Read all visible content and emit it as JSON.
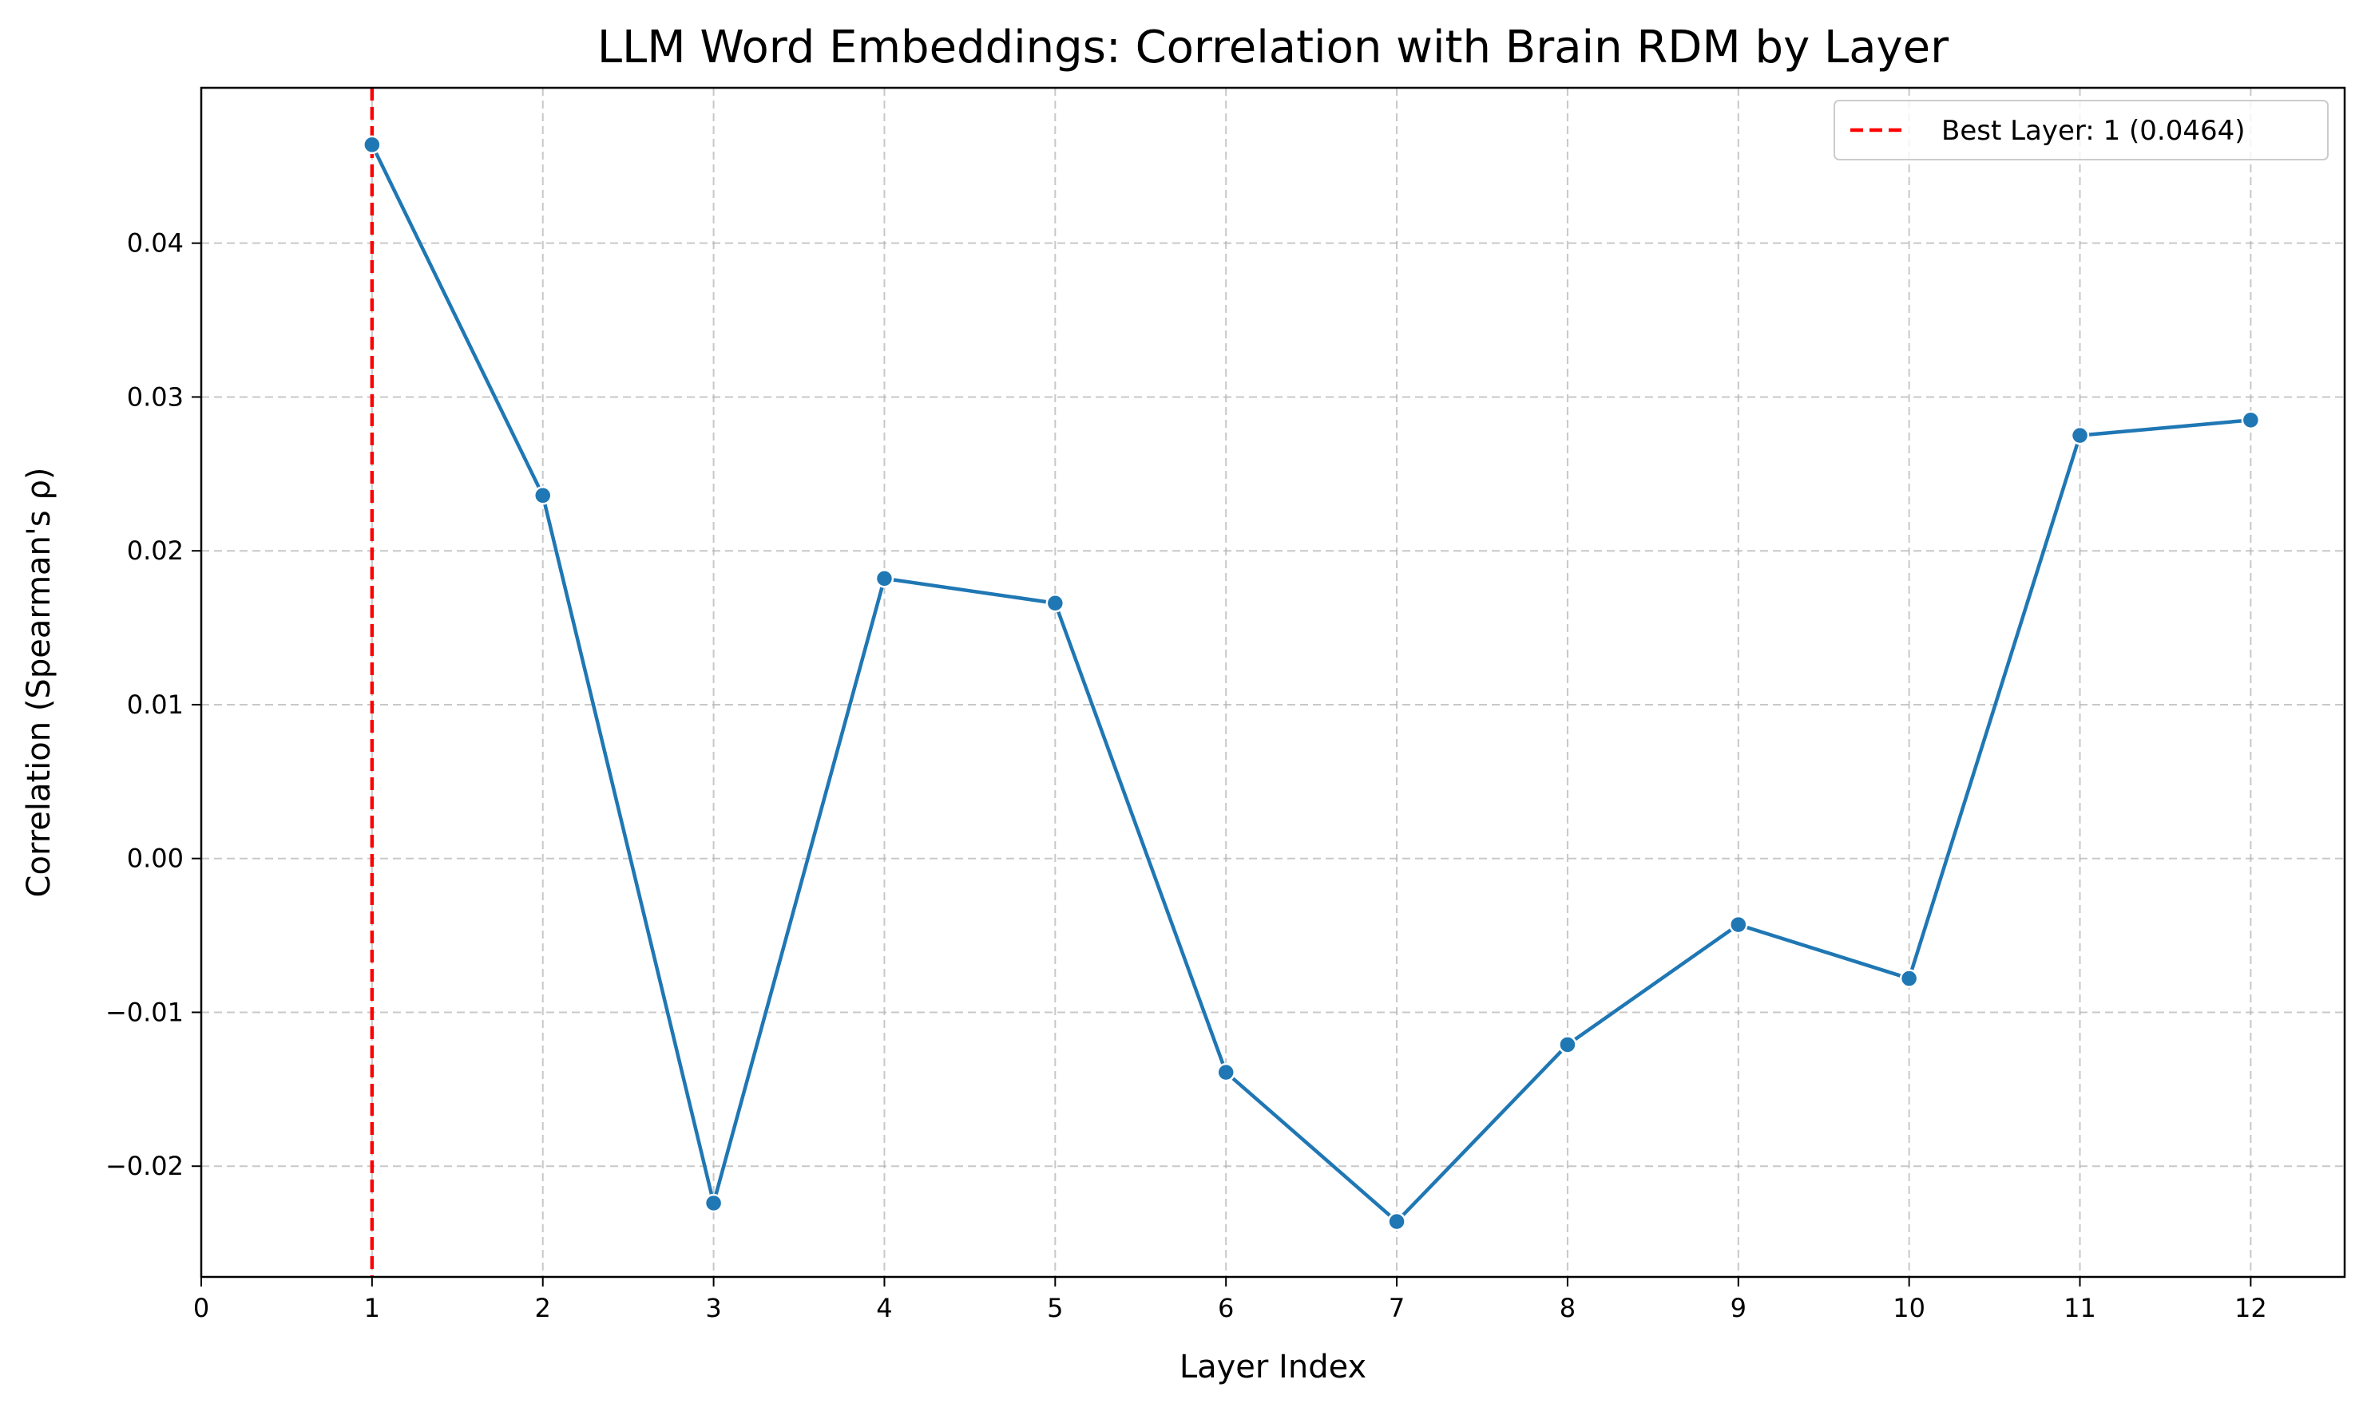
{
  "chart_data": {
    "type": "line",
    "title": "LLM Word Embeddings: Correlation with Brain RDM by Layer",
    "xlabel": "Layer Index",
    "ylabel": "Correlation (Spearman's ρ)",
    "xlim": [
      0,
      12.55
    ],
    "ylim": [
      -0.0272,
      0.0501
    ],
    "x_ticks": [
      0,
      1,
      2,
      3,
      4,
      5,
      6,
      7,
      8,
      9,
      10,
      11,
      12
    ],
    "x_tick_labels": [
      "0",
      "1",
      "2",
      "3",
      "4",
      "5",
      "6",
      "7",
      "8",
      "9",
      "10",
      "11",
      "12"
    ],
    "y_ticks": [
      -0.02,
      -0.01,
      0.0,
      0.01,
      0.02,
      0.03,
      0.04
    ],
    "y_tick_labels": [
      "−0.02",
      "−0.01",
      "0.00",
      "0.01",
      "0.02",
      "0.03",
      "0.04"
    ],
    "grid": true,
    "legend_position": "top-right",
    "series": [
      {
        "x": [
          1,
          2,
          3,
          4,
          5,
          6,
          7,
          8,
          9,
          10,
          11,
          12
        ],
        "values": [
          0.0464,
          0.0236,
          -0.0224,
          0.0182,
          0.0166,
          -0.0139,
          -0.0236,
          -0.0121,
          -0.0043,
          -0.0078,
          0.0275,
          0.0285
        ],
        "color": "#1f77b4",
        "marker": "circle"
      }
    ],
    "annotations": [
      {
        "type": "vertical-line",
        "x": 1,
        "label": "Best Layer: 1 (0.0464)",
        "color": "#ff0000",
        "style": "dashed"
      }
    ]
  }
}
